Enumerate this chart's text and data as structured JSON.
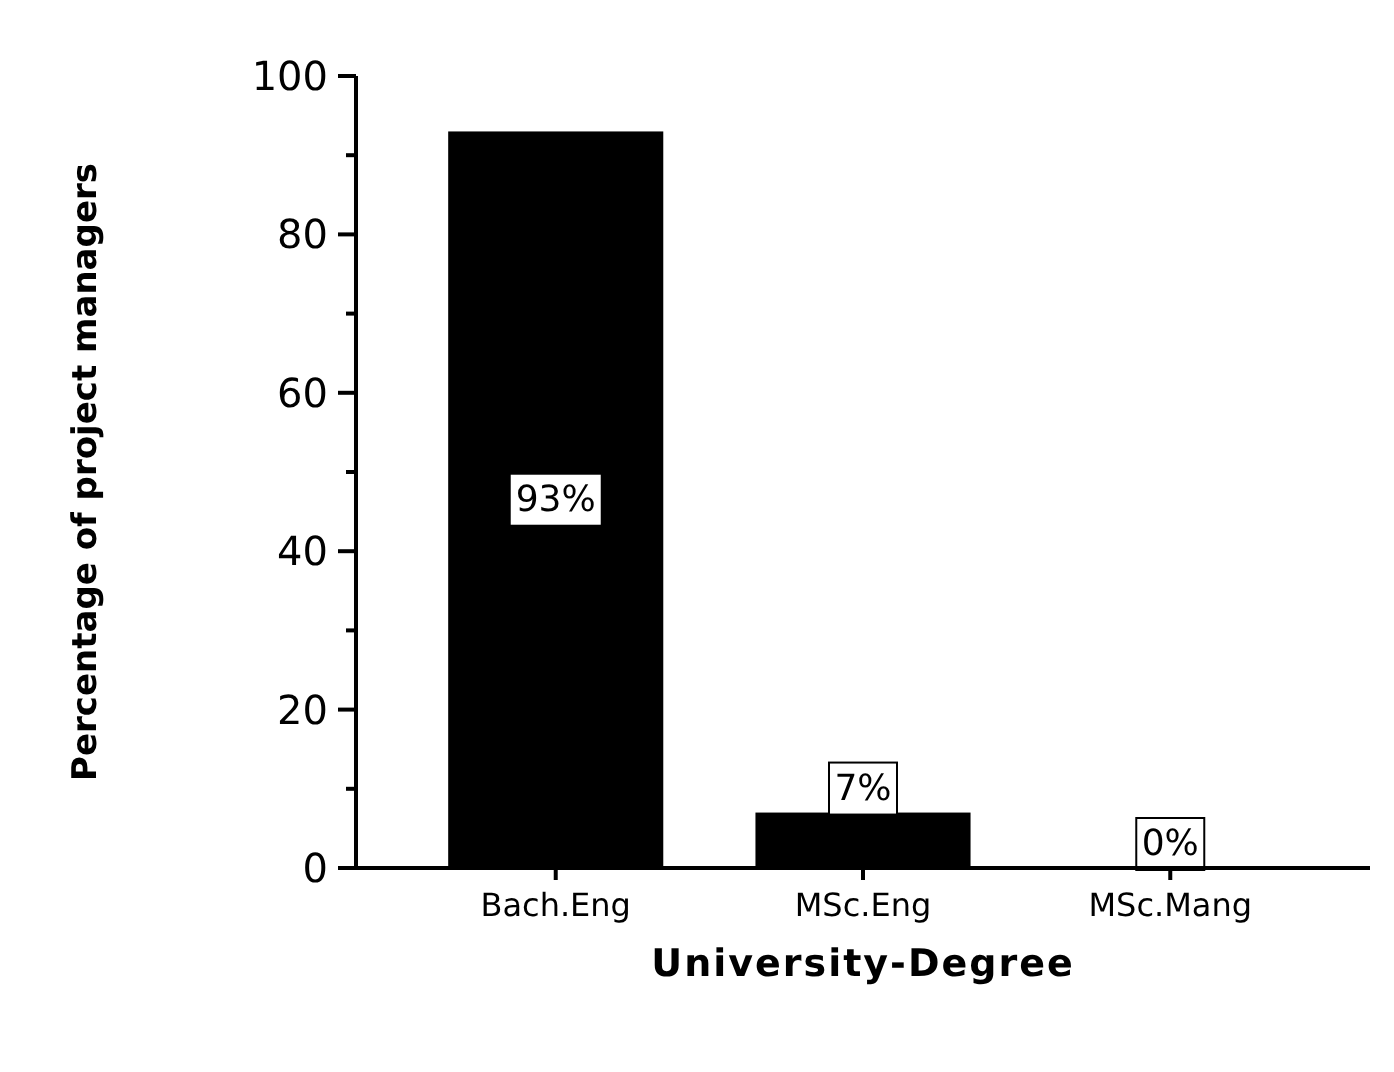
{
  "chart_data": {
    "type": "bar",
    "xlabel": "University-Degree",
    "ylabel": "Percentage of project managers",
    "categories": [
      "Bach.Eng",
      "MSc.Eng",
      "MSc.Mang"
    ],
    "values": [
      93,
      7,
      0
    ],
    "color": "#000000",
    "value_labels": [
      "93%",
      "7%",
      "0%"
    ],
    "ylim": [
      0,
      100
    ],
    "yticks": [
      0,
      {
        "value": 10,
        "label": null
      },
      20,
      {
        "value": 30,
        "label": null
      },
      40,
      {
        "value": 50,
        "label": null
      },
      60,
      {
        "value": 70,
        "label": null
      },
      80,
      {
        "value": 90,
        "label": null
      },
      100
    ],
    "grid": false
  }
}
